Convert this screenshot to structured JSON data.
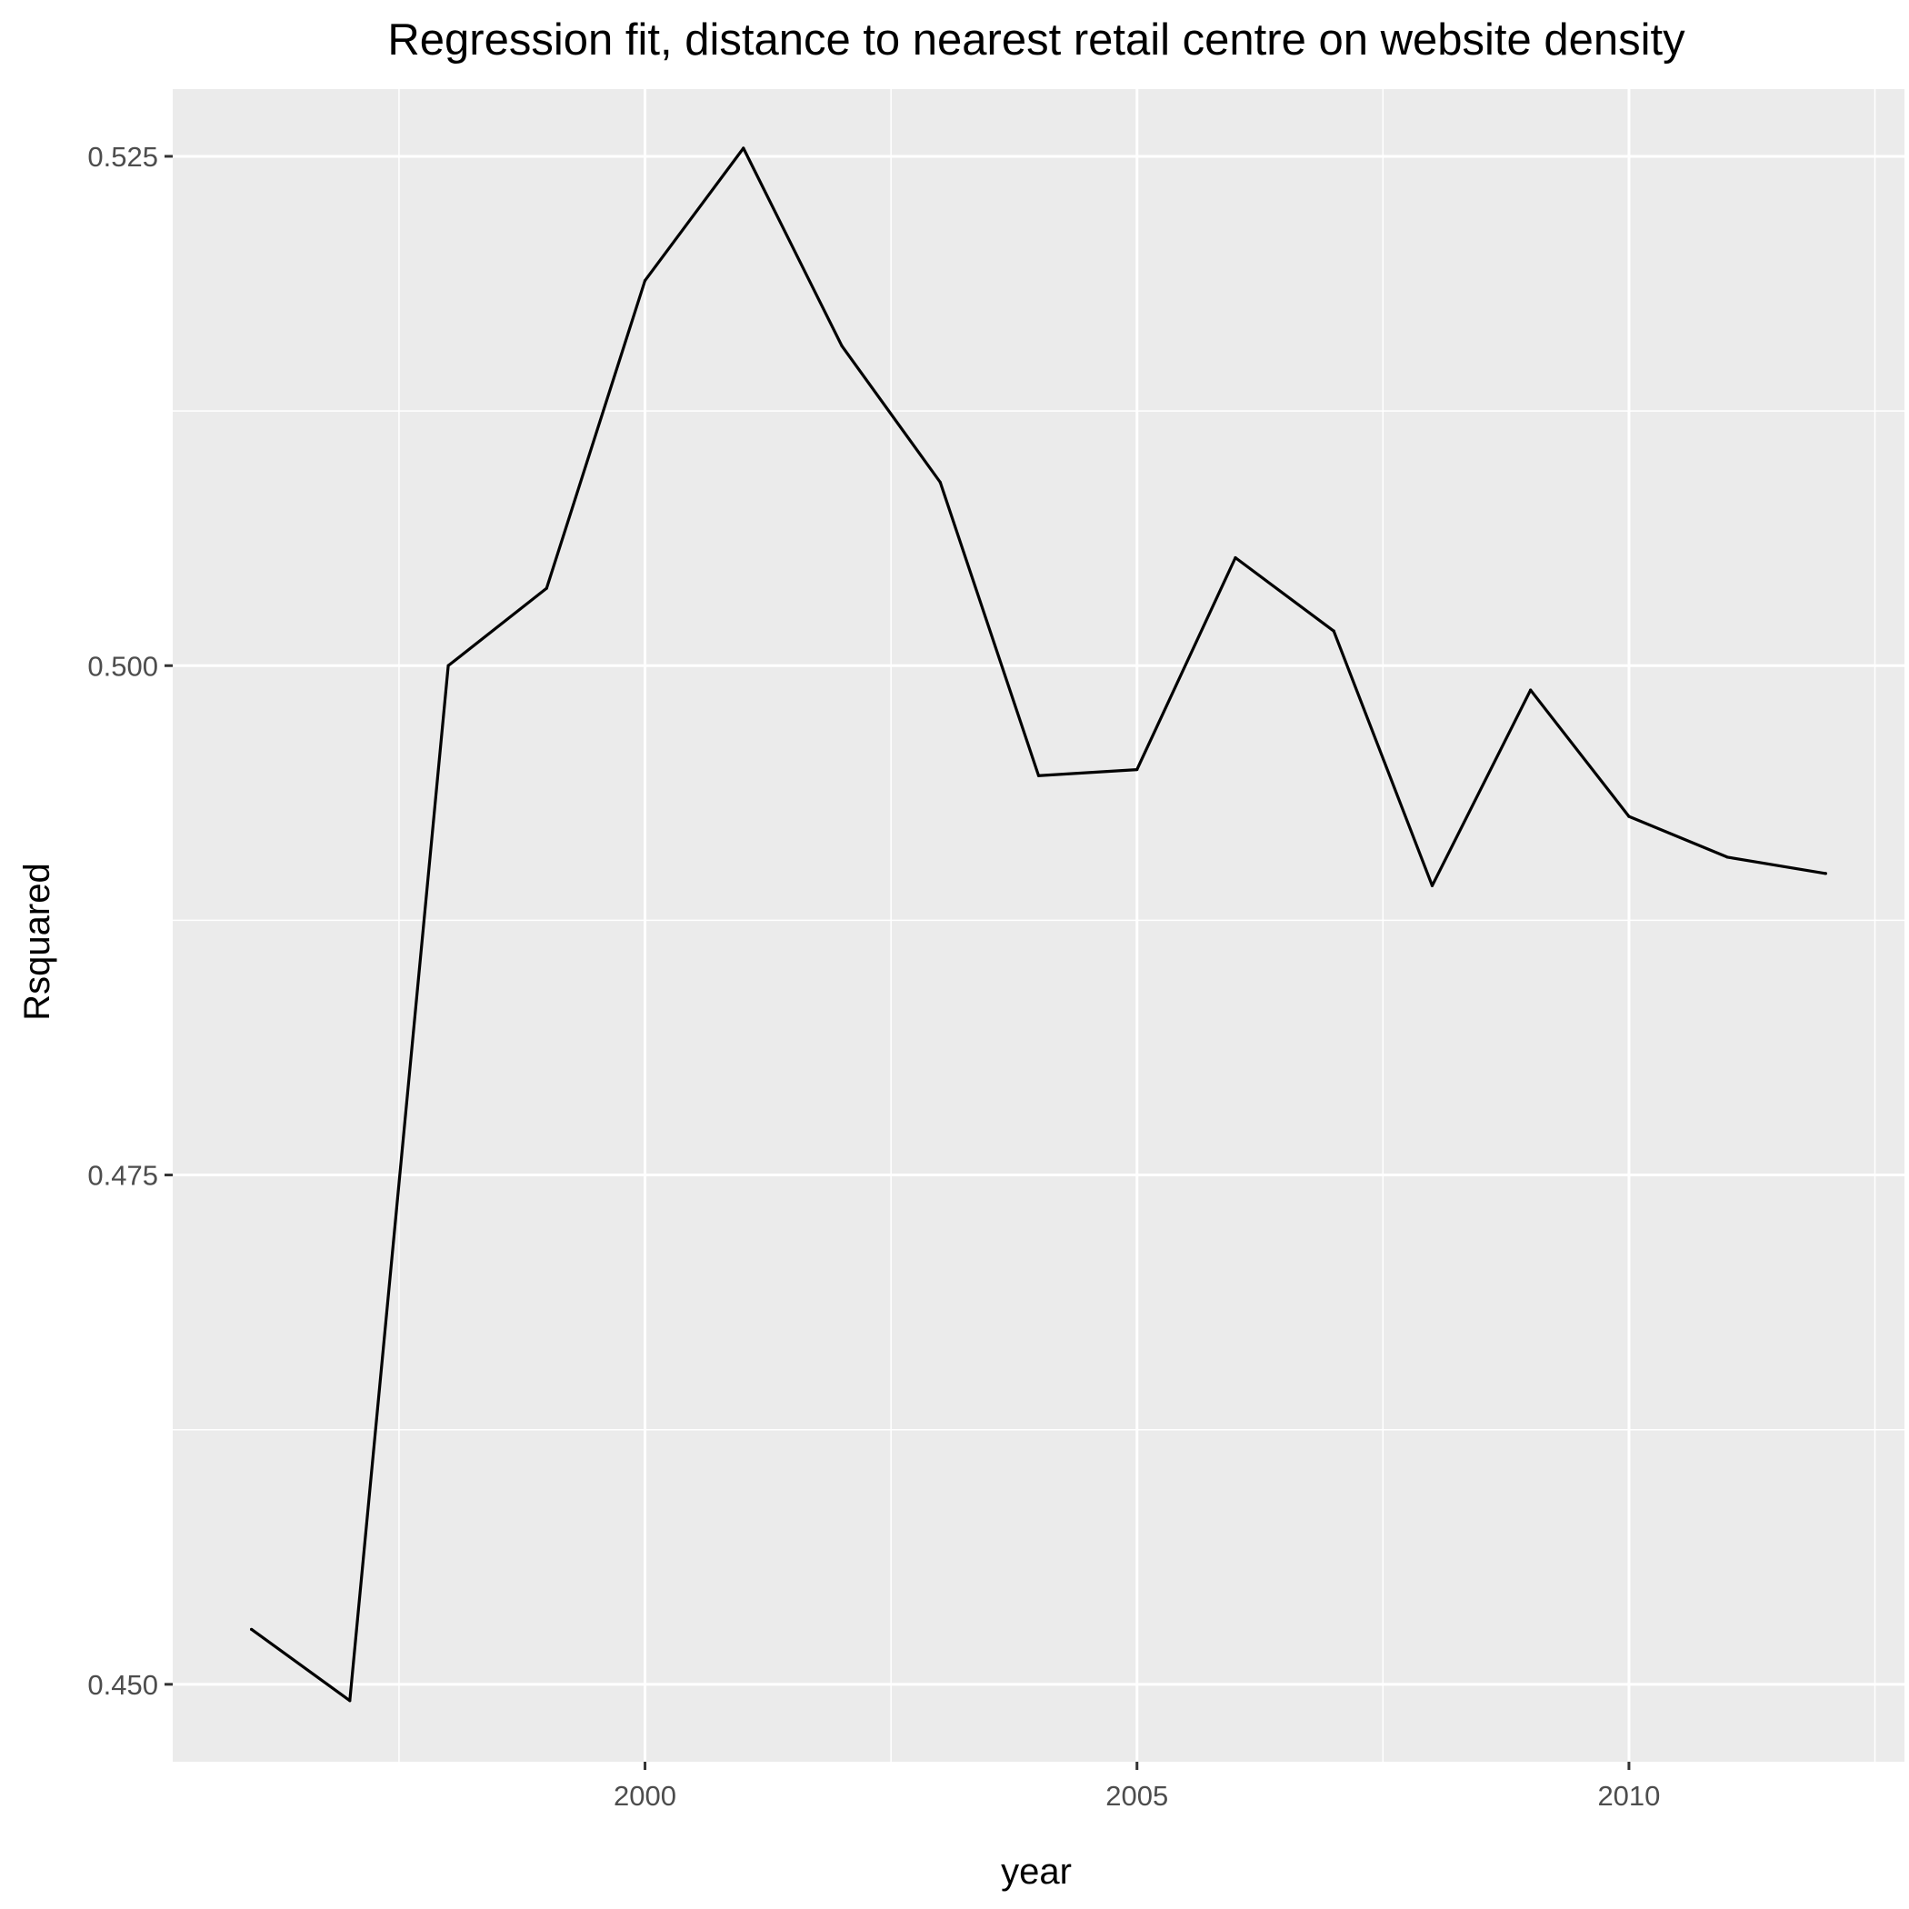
{
  "chart_data": {
    "type": "line",
    "title": "Regression fit, distance to nearest retail centre on website density",
    "xlabel": "year",
    "ylabel": "Rsquared",
    "x": [
      1996,
      1997,
      1998,
      1999,
      2000,
      2001,
      2002,
      2003,
      2004,
      2005,
      2006,
      2007,
      2008,
      2009,
      2010,
      2011,
      2012
    ],
    "series": [
      {
        "values": [
          0.4527,
          0.4492,
          0.5,
          0.5038,
          0.5189,
          0.5254,
          0.5157,
          0.509,
          0.4946,
          0.4949,
          0.5053,
          0.5017,
          0.4892,
          0.4988,
          0.4926,
          0.4906,
          0.4898
        ]
      }
    ],
    "x_ticks": [
      "2000",
      "2005",
      "2010"
    ],
    "x_tick_values": [
      2000,
      2005,
      2010
    ],
    "y_ticks": [
      "0.450",
      "0.475",
      "0.500",
      "0.525"
    ],
    "y_tick_values": [
      0.45,
      0.475,
      0.5,
      0.525
    ],
    "xlim": [
      1995.2,
      2012.8
    ],
    "ylim": [
      0.4462,
      0.5283
    ],
    "grid": true,
    "legend": "none",
    "colors": {
      "panel": "#ebebeb",
      "grid": "#ffffff",
      "line": "#000000",
      "tick_text": "#4d4d4d",
      "axis_text": "#000000"
    }
  }
}
